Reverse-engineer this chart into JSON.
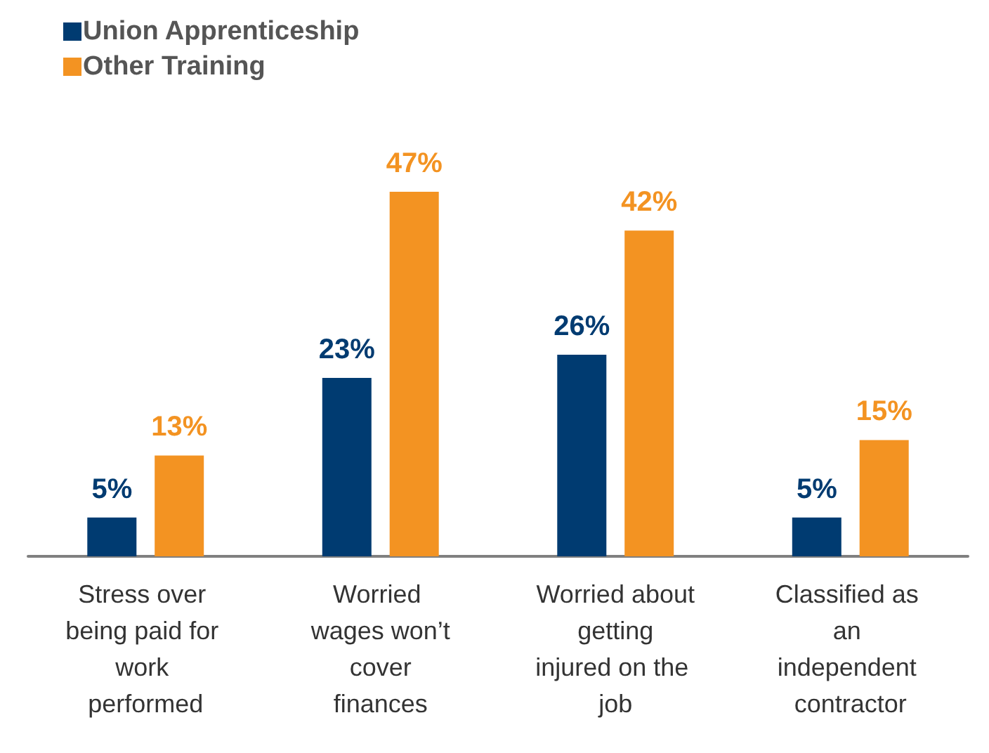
{
  "chart_data": {
    "type": "bar",
    "categories": [
      "Stress over being paid for work performed",
      "Worried wages won’t cover finances",
      "Worried about getting injured on the job",
      "Classified as an independent contractor"
    ],
    "series": [
      {
        "name": "Union Apprenticeship",
        "color": "#003b71",
        "values": [
          5,
          23,
          26,
          5
        ],
        "value_labels": [
          "5%",
          "23%",
          "26%",
          "5%"
        ]
      },
      {
        "name": "Other Training",
        "color": "#f39322",
        "values": [
          13,
          47,
          42,
          15
        ],
        "value_labels": [
          "13%",
          "47%",
          "42%",
          "15%"
        ]
      }
    ],
    "legend": "top left"
  }
}
